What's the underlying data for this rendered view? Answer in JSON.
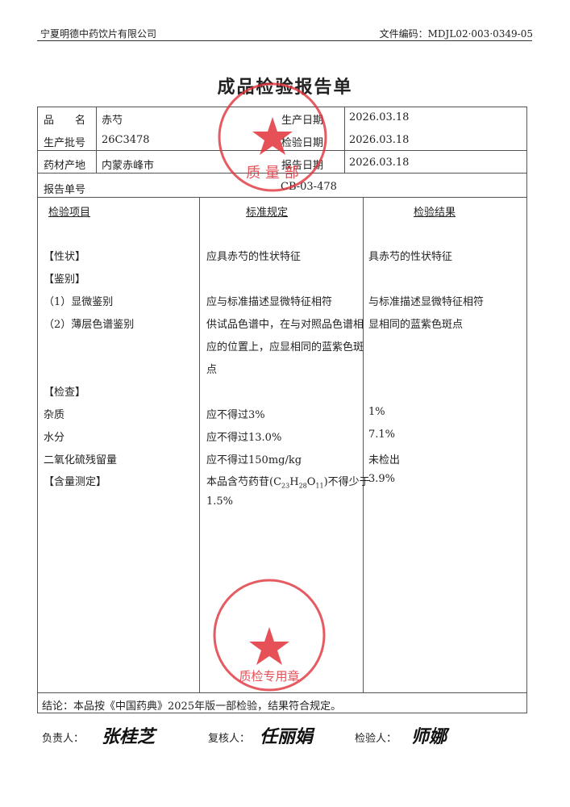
{
  "header": {
    "company": "宁夏明德中药饮片有限公司",
    "doc_no": "文件编码：MDJL02·003·0349-05"
  },
  "title": "成品检验报告单",
  "info": {
    "product_name_label": "品　　名",
    "product_name": "赤芍",
    "batch_label": "生产批号",
    "batch": "26C3478",
    "origin_label": "药材产地",
    "origin": "内蒙赤峰市",
    "prod_date_label": "生产日期",
    "prod_date": "2026.03.18",
    "test_date_label": "检验日期",
    "test_date": "2026.03.18",
    "report_date_label": "报告日期",
    "report_date": "2026.03.18",
    "report_no_label": "报告单号",
    "report_no": "CB-03-478"
  },
  "columns": [
    "检验项目",
    "标准规定",
    "检验结果"
  ],
  "rows": [
    {
      "item": "【性状】",
      "standard": "应具赤芍的性状特征",
      "result": "具赤芍的性状特征"
    },
    {
      "item": "【鉴别】",
      "standard": "",
      "result": ""
    },
    {
      "item": "（1）显微鉴别",
      "standard": "应与标准描述显微特征相符",
      "result": "与标准描述显微特征相符"
    },
    {
      "item": "（2）薄层色谱鉴别",
      "standard": "供试品色谱中，在与对照品色谱相",
      "result": "显相同的蓝紫色斑点"
    },
    {
      "item": "",
      "standard": "应的位置上，应显相同的蓝紫色斑",
      "result": ""
    },
    {
      "item": "",
      "standard": "点",
      "result": ""
    },
    {
      "item": "【检查】",
      "standard": "",
      "result": ""
    },
    {
      "item": "杂质",
      "standard": "应不得过3%",
      "result": "1%"
    },
    {
      "item": "水分",
      "standard": "应不得过13.0%",
      "result": "7.1%"
    },
    {
      "item": "二氧化硫残留量",
      "standard": "应不得过150mg/kg",
      "result": "未检出"
    },
    {
      "item": "【含量测定】",
      "standard": "",
      "result": "3.9%"
    }
  ],
  "assay": {
    "prefix": "本品含芍药苷(C",
    "c": "23",
    "h": "H",
    "hn": "28",
    "o": "O",
    "on": "11",
    "suffix": ")不得少于",
    "line2": "1.5%"
  },
  "conclusion": "结论：本品按《中国药典》2025年版一部检验，结果符合规定。",
  "signatures": {
    "responsible_label": "负责人：",
    "responsible": "张桂芝",
    "reviewer_label": "复核人：",
    "reviewer": "任丽娟",
    "inspector_label": "检验人：",
    "inspector": "师娜"
  },
  "stamps": {
    "top": "宁夏明德中药饮片有限公司 质量部",
    "bottom": "宁夏明德中药饮片有限公司 质检专用章"
  },
  "colors": {
    "stamp": "#e0323a"
  }
}
